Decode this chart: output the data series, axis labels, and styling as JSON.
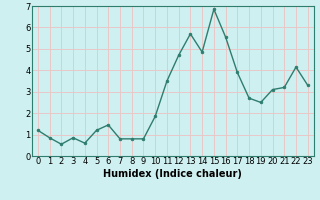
{
  "x": [
    0,
    1,
    2,
    3,
    4,
    5,
    6,
    7,
    8,
    9,
    10,
    11,
    12,
    13,
    14,
    15,
    16,
    17,
    18,
    19,
    20,
    21,
    22,
    23
  ],
  "y": [
    1.2,
    0.85,
    0.55,
    0.85,
    0.6,
    1.2,
    1.45,
    0.8,
    0.8,
    0.8,
    1.85,
    3.5,
    4.7,
    5.7,
    4.85,
    6.85,
    5.55,
    3.9,
    2.7,
    2.5,
    3.1,
    3.2,
    4.15,
    3.3
  ],
  "line_color": "#2e7d6e",
  "marker": "o",
  "marker_size": 2,
  "line_width": 1.0,
  "bg_color": "#cff0f0",
  "grid_color": "#e8c8c8",
  "xlabel": "Humidex (Indice chaleur)",
  "ylabel": "",
  "xlim": [
    -0.5,
    23.5
  ],
  "ylim": [
    0,
    7
  ],
  "yticks": [
    0,
    1,
    2,
    3,
    4,
    5,
    6,
    7
  ],
  "xtick_labels": [
    "0",
    "1",
    "2",
    "3",
    "4",
    "5",
    "6",
    "7",
    "8",
    "9",
    "10",
    "11",
    "12",
    "13",
    "14",
    "15",
    "16",
    "17",
    "18",
    "19",
    "20",
    "21",
    "22",
    "23"
  ],
  "tick_fontsize": 6,
  "xlabel_fontsize": 7,
  "border_color": "#2e7d6e"
}
